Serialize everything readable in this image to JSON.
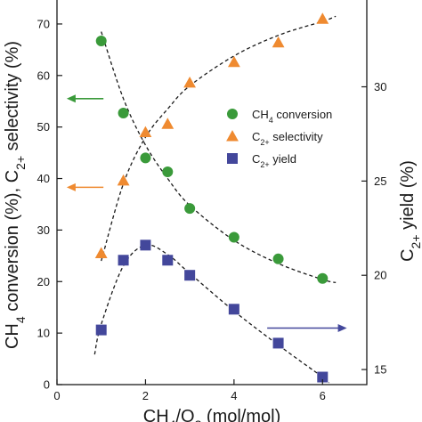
{
  "chart_data": {
    "type": "scatter",
    "x_values": [
      1,
      1.5,
      2,
      2.5,
      3,
      4,
      5,
      6
    ],
    "xlim": [
      0,
      7
    ],
    "xticks": [
      0,
      2,
      4,
      6
    ],
    "ylim_left": [
      0,
      75
    ],
    "yticks_left": [
      0,
      10,
      20,
      30,
      40,
      50,
      60,
      70
    ],
    "ylim_right": [
      14.2,
      34.7
    ],
    "yticks_right": [
      15,
      20,
      25,
      30
    ],
    "ylabel_left_parts": [
      {
        "text": "CH",
        "sub": false
      },
      {
        "text": "4",
        "sub": true
      },
      {
        "text": " conversion (%), C",
        "sub": false
      },
      {
        "text": "2+",
        "sub": true
      },
      {
        "text": " selectivity (%)",
        "sub": false
      }
    ],
    "ylabel_right_parts": [
      {
        "text": "C",
        "sub": false
      },
      {
        "text": "2+",
        "sub": true
      },
      {
        "text": " yield (%)",
        "sub": false
      }
    ],
    "xlabel_parts": [
      {
        "text": "CH",
        "sub": false
      },
      {
        "text": "4",
        "sub": true
      },
      {
        "text": "/O",
        "sub": false
      },
      {
        "text": "2",
        "sub": true
      },
      {
        "text": " (mol/mol)",
        "sub": false
      }
    ],
    "grid": false,
    "legend_position": "right-middle",
    "series": [
      {
        "key": "ch4",
        "axis": "left",
        "marker": "circle",
        "color": "#3a9a3a",
        "legend_parts": [
          {
            "text": "CH",
            "sub": false
          },
          {
            "text": "4",
            "sub": true
          },
          {
            "text": " conversion",
            "sub": false
          }
        ],
        "values": [
          66.7,
          52.7,
          44.0,
          41.3,
          34.2,
          28.6,
          24.4,
          20.6
        ],
        "trend": [
          [
            1,
            68.5
          ],
          [
            1.5,
            55.5
          ],
          [
            2,
            46.5
          ],
          [
            2.5,
            40.0
          ],
          [
            3,
            34.8
          ],
          [
            4,
            28.0
          ],
          [
            5,
            23.5
          ],
          [
            6,
            20.4
          ],
          [
            6.3,
            19.8
          ]
        ]
      },
      {
        "key": "selectivity",
        "axis": "left",
        "marker": "triangle",
        "color": "#ef8a30",
        "legend_parts": [
          {
            "text": "C",
            "sub": false
          },
          {
            "text": "2+",
            "sub": true
          },
          {
            "text": " selectivity",
            "sub": false
          }
        ],
        "values": [
          25.5,
          39.6,
          49.0,
          50.6,
          58.6,
          62.6,
          66.4,
          71.0
        ],
        "trend": [
          [
            1,
            24.0
          ],
          [
            1.5,
            39.0
          ],
          [
            2,
            48.0
          ],
          [
            2.5,
            53.5
          ],
          [
            3,
            58.0
          ],
          [
            4,
            63.8
          ],
          [
            5,
            67.8
          ],
          [
            6,
            70.5
          ],
          [
            6.3,
            71.5
          ]
        ]
      },
      {
        "key": "yield",
        "axis": "right",
        "marker": "square",
        "color": "#43479b",
        "legend_parts": [
          {
            "text": "C",
            "sub": false
          },
          {
            "text": "2+",
            "sub": true
          },
          {
            "text": " yield",
            "sub": false
          }
        ],
        "values": [
          17.1,
          20.8,
          21.6,
          20.8,
          20.0,
          18.2,
          16.4,
          14.6
        ],
        "trend": [
          [
            0.85,
            15.8
          ],
          [
            1,
            17.4
          ],
          [
            1.5,
            20.5
          ],
          [
            2,
            21.6
          ],
          [
            2.5,
            21.1
          ],
          [
            3,
            20.1
          ],
          [
            4,
            18.1
          ],
          [
            5,
            16.3
          ],
          [
            6,
            14.6
          ],
          [
            6.15,
            14.3
          ]
        ]
      }
    ],
    "arrows": [
      {
        "direction": "left",
        "axis": "left",
        "color": "#3a9a3a",
        "y": 55.5,
        "x_from": 1.05,
        "x_to": 0.22
      },
      {
        "direction": "left",
        "axis": "left",
        "color": "#ef8a30",
        "y": 38.3,
        "x_from": 1.05,
        "x_to": 0.22
      },
      {
        "direction": "right",
        "axis": "right",
        "color": "#43479b",
        "y": 17.2,
        "x_from": 4.75,
        "x_to": 6.55
      }
    ]
  }
}
